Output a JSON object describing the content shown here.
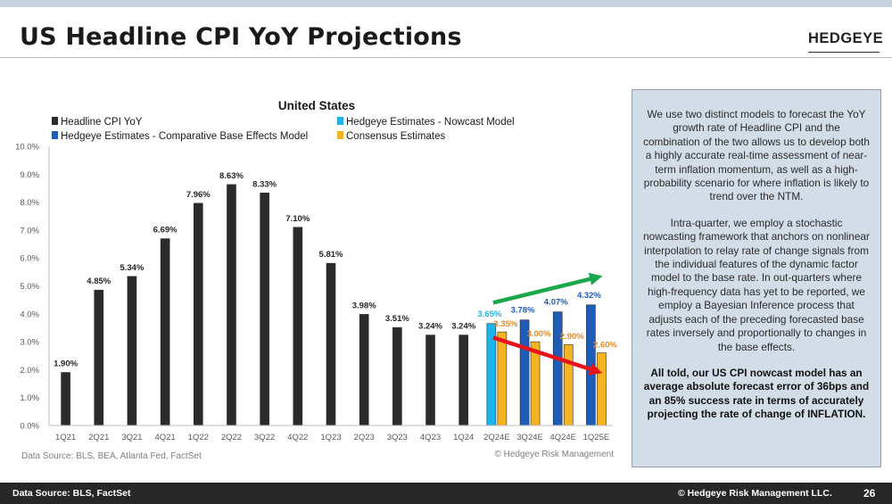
{
  "header": {
    "title": "US Headline CPI YoY Projections",
    "logo": "HEDGEYE"
  },
  "chart_data": {
    "type": "bar",
    "title": "United States",
    "categories": [
      "1Q21",
      "2Q21",
      "3Q21",
      "4Q21",
      "1Q22",
      "2Q22",
      "3Q22",
      "4Q22",
      "1Q23",
      "2Q23",
      "3Q23",
      "4Q23",
      "1Q24",
      "2Q24E",
      "3Q24E",
      "4Q24E",
      "1Q25E"
    ],
    "ylim": [
      0,
      10
    ],
    "yticks": [
      "0.0%",
      "1.0%",
      "2.0%",
      "3.0%",
      "4.0%",
      "5.0%",
      "6.0%",
      "7.0%",
      "8.0%",
      "9.0%",
      "10.0%"
    ],
    "series": [
      {
        "name": "Headline CPI YoY",
        "color": "#2b2b2b",
        "values": [
          1.9,
          4.85,
          5.34,
          6.69,
          7.96,
          8.63,
          8.33,
          7.1,
          5.81,
          3.98,
          3.51,
          3.24,
          3.24,
          null,
          null,
          null,
          null
        ],
        "labels": [
          "1.90%",
          "4.85%",
          "5.34%",
          "6.69%",
          "7.96%",
          "8.63%",
          "8.33%",
          "7.10%",
          "5.81%",
          "3.98%",
          "3.51%",
          "3.24%",
          "3.24%",
          "",
          "",
          "",
          ""
        ]
      },
      {
        "name": "Hedgeye Estimates - Nowcast Model",
        "color": "#1cb4ec",
        "values": [
          null,
          null,
          null,
          null,
          null,
          null,
          null,
          null,
          null,
          null,
          null,
          null,
          null,
          3.65,
          null,
          null,
          null
        ],
        "labels": [
          "",
          "",
          "",
          "",
          "",
          "",
          "",
          "",
          "",
          "",
          "",
          "",
          "",
          "3.65%",
          "",
          "",
          ""
        ]
      },
      {
        "name": "Hedgeye Estimates - Comparative Base Effects Model",
        "color": "#1f5cb8",
        "values": [
          null,
          null,
          null,
          null,
          null,
          null,
          null,
          null,
          null,
          null,
          null,
          null,
          null,
          null,
          3.78,
          4.07,
          4.32
        ],
        "labels": [
          "",
          "",
          "",
          "",
          "",
          "",
          "",
          "",
          "",
          "",
          "",
          "",
          "",
          "",
          "3.78%",
          "4.07%",
          "4.32%"
        ]
      },
      {
        "name": "Consensus Estimates",
        "color": "#f4b320",
        "values": [
          null,
          null,
          null,
          null,
          null,
          null,
          null,
          null,
          null,
          null,
          null,
          null,
          null,
          3.35,
          3.0,
          2.9,
          2.6
        ],
        "labels": [
          "",
          "",
          "",
          "",
          "",
          "",
          "",
          "",
          "",
          "",
          "",
          "",
          "",
          "3.35%",
          "3.00%",
          "2.90%",
          "2.60%"
        ]
      }
    ],
    "annotations": {
      "green_arrow": {
        "color": "#1aa84a",
        "from": [
          "2Q24E",
          4.4
        ],
        "to": [
          "1Q25E",
          5.3
        ]
      },
      "red_arrow": {
        "color": "#e8141b",
        "from": [
          "2Q24E",
          3.15
        ],
        "to": [
          "1Q25E",
          1.95
        ]
      }
    },
    "source": "Data Source: BLS, BEA, Atlanta Fed, FactSet",
    "copyright": "© Hedgeye Risk Management"
  },
  "panel": {
    "p1": "We use two distinct models to forecast the YoY growth rate of Headline CPI and the combination of the two allows us to develop both a highly accurate real-time assessment of near-term inflation momentum, as well as a high-probability scenario for where inflation is likely to trend over the NTM.",
    "p2": "Intra-quarter, we employ a stochastic nowcasting framework that anchors on nonlinear interpolation to relay rate of change signals from the individual features of the dynamic factor model to the base rate. In out-quarters where high-frequency data has yet to be reported, we employ a Bayesian Inference process that adjusts each of the preceding forecasted base rates inversely and proportionally to changes in the base effects.",
    "p3": "All told, our US CPI nowcast model has an average absolute forecast error of 36bps and an 85% success rate in terms of accurately projecting the rate of change of INFLATION."
  },
  "footer": {
    "source": "Data Source: BLS, FactSet",
    "copyright": "© Hedgeye Risk Management LLC.",
    "page": "26"
  }
}
